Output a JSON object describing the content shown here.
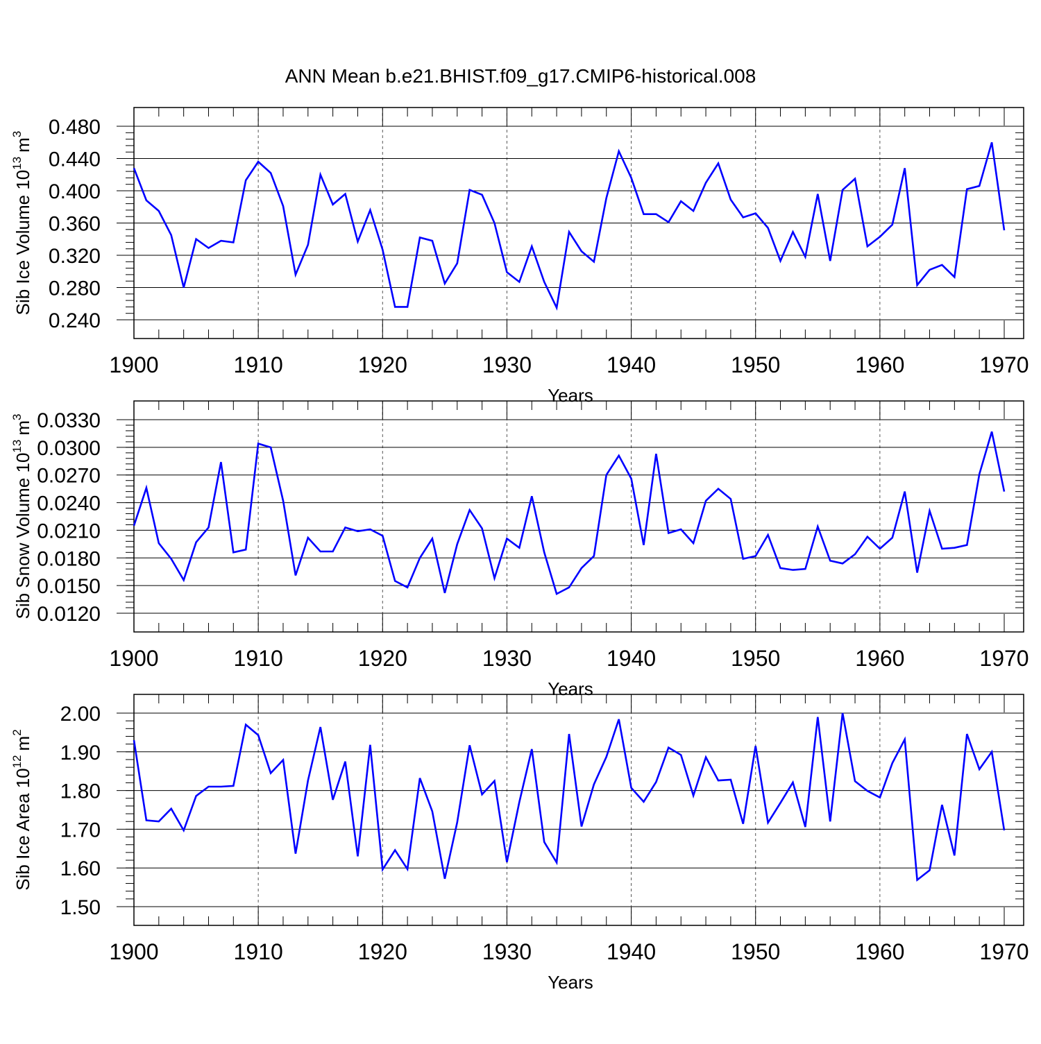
{
  "title": "ANN Mean b.e21.BHIST.f09_g17.CMIP6-historical.008",
  "line_color": "#0000ff",
  "chart_data": [
    {
      "type": "line",
      "ylabel_main": "Sib Ice Volume 10",
      "ylabel_exp": "13",
      "ylabel_unit": "m",
      "ylabel_unit_exp": "3",
      "xlabel": "Years",
      "xlim": [
        1900,
        1970
      ],
      "ylim": [
        0.24,
        0.48
      ],
      "yticks": [
        "0.240",
        "0.280",
        "0.320",
        "0.360",
        "0.400",
        "0.440",
        "0.480"
      ],
      "ytick_values": [
        0.24,
        0.28,
        0.32,
        0.36,
        0.4,
        0.44,
        0.48
      ],
      "xticks": [
        "1900",
        "1910",
        "1920",
        "1930",
        "1940",
        "1950",
        "1960",
        "1970"
      ],
      "x_start": 1900,
      "values": [
        0.428,
        0.388,
        0.375,
        0.345,
        0.28,
        0.34,
        0.329,
        0.338,
        0.336,
        0.413,
        0.436,
        0.422,
        0.381,
        0.296,
        0.333,
        0.42,
        0.383,
        0.396,
        0.337,
        0.376,
        0.327,
        0.256,
        0.256,
        0.342,
        0.338,
        0.285,
        0.31,
        0.401,
        0.395,
        0.36,
        0.299,
        0.287,
        0.331,
        0.287,
        0.255,
        0.349,
        0.325,
        0.312,
        0.391,
        0.449,
        0.416,
        0.371,
        0.371,
        0.361,
        0.387,
        0.375,
        0.41,
        0.434,
        0.389,
        0.367,
        0.372,
        0.354,
        0.313,
        0.349,
        0.318,
        0.396,
        0.313,
        0.401,
        0.415,
        0.331,
        0.343,
        0.358,
        0.428,
        0.283,
        0.302,
        0.308,
        0.293,
        0.402,
        0.406,
        0.46,
        0.351
      ]
    },
    {
      "type": "line",
      "ylabel_main": "Sib Snow Volume 10",
      "ylabel_exp": "13",
      "ylabel_unit": "m",
      "ylabel_unit_exp": "3",
      "xlabel": "Years",
      "xlim": [
        1900,
        1970
      ],
      "ylim": [
        0.012,
        0.033
      ],
      "yticks": [
        "0.0120",
        "0.0150",
        "0.0180",
        "0.0210",
        "0.0240",
        "0.0270",
        "0.0300",
        "0.0330"
      ],
      "ytick_values": [
        0.012,
        0.015,
        0.018,
        0.021,
        0.024,
        0.027,
        0.03,
        0.033
      ],
      "xticks": [
        "1900",
        "1910",
        "1920",
        "1930",
        "1940",
        "1950",
        "1960",
        "1970"
      ],
      "x_start": 1900,
      "values": [
        0.0215,
        0.0256,
        0.0196,
        0.0179,
        0.0156,
        0.0197,
        0.0213,
        0.0284,
        0.0186,
        0.0189,
        0.0304,
        0.03,
        0.0242,
        0.0161,
        0.0202,
        0.0187,
        0.0187,
        0.0213,
        0.0209,
        0.0211,
        0.0204,
        0.0155,
        0.0148,
        0.018,
        0.0201,
        0.0142,
        0.0195,
        0.0232,
        0.0212,
        0.0158,
        0.0201,
        0.0191,
        0.0247,
        0.0186,
        0.0141,
        0.0148,
        0.0169,
        0.0182,
        0.027,
        0.0291,
        0.0266,
        0.0194,
        0.0293,
        0.0207,
        0.0211,
        0.0196,
        0.0242,
        0.0255,
        0.0244,
        0.0179,
        0.0182,
        0.0205,
        0.0169,
        0.0167,
        0.0168,
        0.0214,
        0.0177,
        0.0174,
        0.0184,
        0.0203,
        0.019,
        0.0202,
        0.0252,
        0.0164,
        0.0231,
        0.019,
        0.0191,
        0.0194,
        0.0271,
        0.0317,
        0.0252
      ]
    },
    {
      "type": "line",
      "ylabel_main": "Sib Ice Area 10",
      "ylabel_exp": "12",
      "ylabel_unit": "m",
      "ylabel_unit_exp": "2",
      "xlabel": "Years",
      "xlim": [
        1900,
        1970
      ],
      "ylim": [
        1.5,
        2.0
      ],
      "yticks": [
        "1.50",
        "1.60",
        "1.70",
        "1.80",
        "1.90",
        "2.00"
      ],
      "ytick_values": [
        1.5,
        1.6,
        1.7,
        1.8,
        1.9,
        2.0
      ],
      "xticks": [
        "1900",
        "1910",
        "1920",
        "1930",
        "1940",
        "1950",
        "1960",
        "1970"
      ],
      "x_start": 1900,
      "values": [
        1.93,
        1.723,
        1.72,
        1.753,
        1.697,
        1.786,
        1.81,
        1.81,
        1.812,
        1.97,
        1.943,
        1.845,
        1.879,
        1.637,
        1.826,
        1.964,
        1.776,
        1.875,
        1.63,
        1.918,
        1.596,
        1.646,
        1.597,
        1.832,
        1.746,
        1.572,
        1.718,
        1.917,
        1.79,
        1.825,
        1.615,
        1.77,
        1.907,
        1.667,
        1.614,
        1.946,
        1.707,
        1.816,
        1.887,
        1.984,
        1.807,
        1.771,
        1.822,
        1.911,
        1.892,
        1.787,
        1.886,
        1.826,
        1.828,
        1.714,
        1.915,
        1.717,
        1.768,
        1.821,
        1.706,
        1.99,
        1.72,
        2.0,
        1.824,
        1.799,
        1.782,
        1.871,
        1.932,
        1.569,
        1.594,
        1.763,
        1.632,
        1.946,
        1.855,
        1.9,
        1.697
      ]
    }
  ]
}
